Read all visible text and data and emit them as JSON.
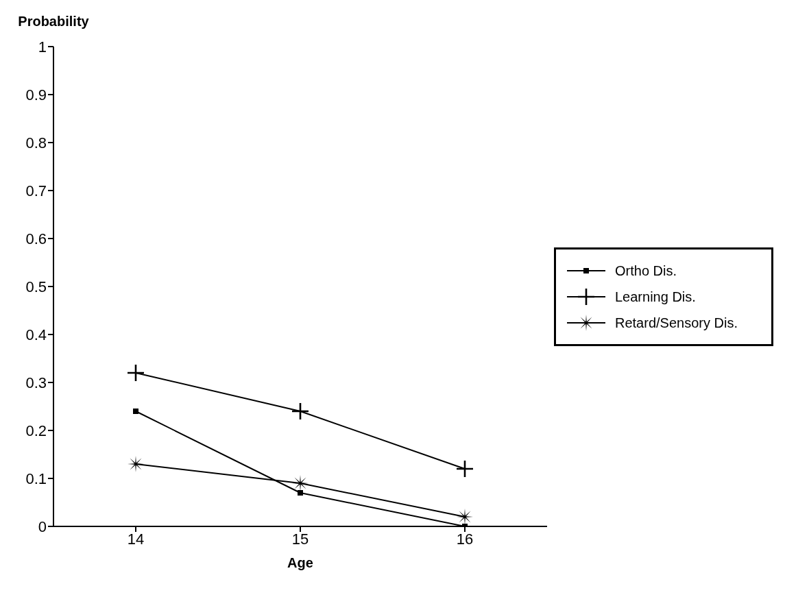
{
  "chart_data": {
    "type": "line",
    "xlabel": "Age",
    "ylabel": "Probability",
    "x": [
      14,
      15,
      16
    ],
    "series": [
      {
        "name": "Ortho Dis.",
        "color": "#000000",
        "marker": "square",
        "values": [
          0.24,
          0.07,
          0
        ]
      },
      {
        "name": "Learning Dis.",
        "color": "#000000",
        "marker": "cross",
        "values": [
          0.32,
          0.24,
          0.12
        ]
      },
      {
        "name": "Retard/Sensory Dis.",
        "color": "#000000",
        "marker": "star",
        "values": [
          0.13,
          0.09,
          0.02
        ]
      }
    ],
    "xlim": [
      13.5,
      16.5
    ],
    "xticks": [
      14,
      15,
      16
    ],
    "ylim": [
      0,
      1
    ],
    "yticks": [
      0,
      0.1,
      0.2,
      0.3,
      0.4,
      0.5,
      0.6,
      0.7,
      0.8,
      0.9,
      1
    ],
    "grid": false,
    "legend": "right",
    "line_style": "solid"
  }
}
